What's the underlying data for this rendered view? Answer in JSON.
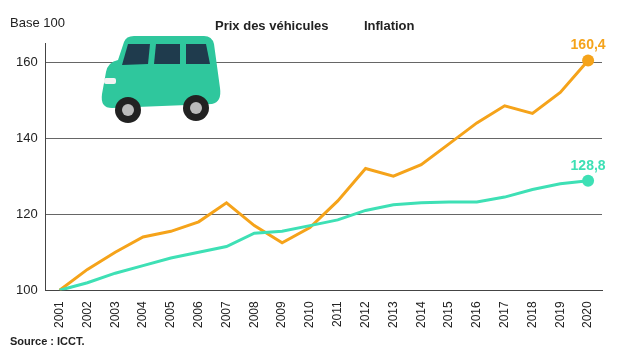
{
  "chart_data": {
    "type": "line",
    "y_label": "Base 100",
    "source": "Source : ICCT.",
    "categories": [
      "2001",
      "2002",
      "2003",
      "2004",
      "2005",
      "2006",
      "2007",
      "2008",
      "2009",
      "2010",
      "2011",
      "2012",
      "2013",
      "2014",
      "2015",
      "2016",
      "2017",
      "2018",
      "2019",
      "2020"
    ],
    "series": [
      {
        "name": "Prix des véhicules",
        "color": "#3ee0b5",
        "values": [
          100,
          102,
          104.5,
          106.5,
          108.5,
          110,
          111.5,
          115,
          115.5,
          117,
          118.5,
          121,
          122.5,
          123,
          123.2,
          123.2,
          124.5,
          126.5,
          128,
          128.8
        ]
      },
      {
        "name": "Inflation",
        "color": "#f5a31a",
        "values": [
          100,
          105.5,
          110,
          114,
          115.5,
          118,
          123,
          117,
          112.5,
          116.5,
          123.5,
          132,
          130,
          133,
          138.5,
          144,
          148.5,
          146.5,
          152,
          160.4
        ]
      }
    ],
    "ylim": [
      100,
      165
    ],
    "yticks": [
      100,
      120,
      140,
      160
    ],
    "grid": true,
    "legend": "top",
    "annotations": [
      {
        "series": "Inflation",
        "x": "2020",
        "value": 160.4,
        "text": "160,4"
      },
      {
        "series": "Prix des véhicules",
        "x": "2020",
        "value": 128.8,
        "text": "128,8"
      }
    ]
  }
}
